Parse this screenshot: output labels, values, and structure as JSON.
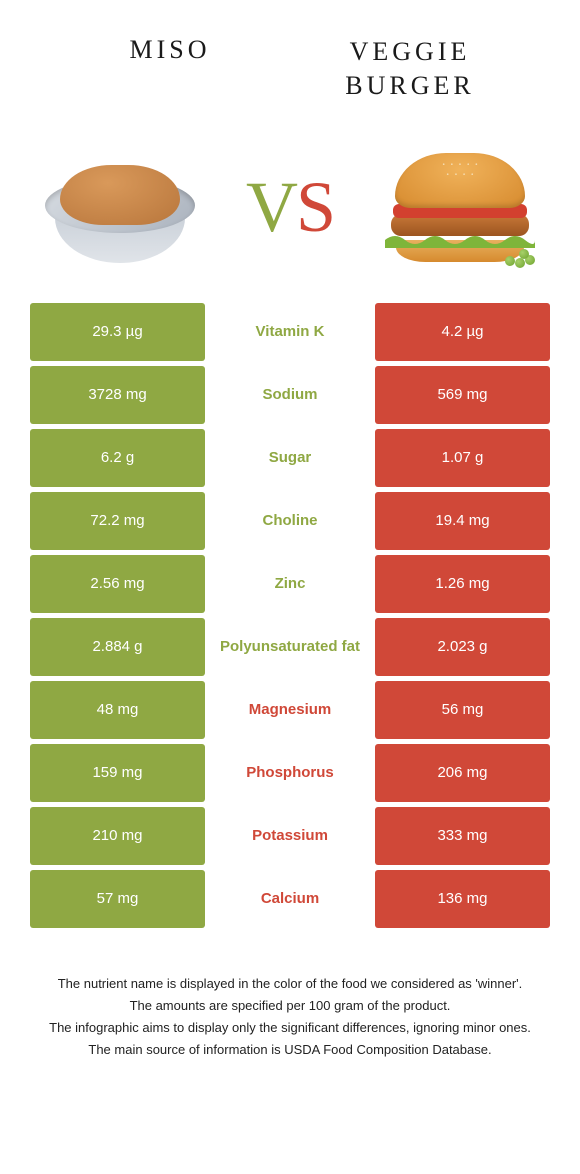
{
  "header": {
    "left_title": "Miso",
    "right_title": "Veggie Burger"
  },
  "vs": {
    "v": "V",
    "s": "S"
  },
  "colors": {
    "left": "#8fa843",
    "right": "#d04838",
    "left_text": "#8fa843",
    "right_text": "#d04838"
  },
  "rows": [
    {
      "left": "29.3 µg",
      "label": "Vitamin K",
      "right": "4.2 µg",
      "winner": "left"
    },
    {
      "left": "3728 mg",
      "label": "Sodium",
      "right": "569 mg",
      "winner": "left"
    },
    {
      "left": "6.2 g",
      "label": "Sugar",
      "right": "1.07 g",
      "winner": "left"
    },
    {
      "left": "72.2 mg",
      "label": "Choline",
      "right": "19.4 mg",
      "winner": "left"
    },
    {
      "left": "2.56 mg",
      "label": "Zinc",
      "right": "1.26 mg",
      "winner": "left"
    },
    {
      "left": "2.884 g",
      "label": "Polyunsaturated fat",
      "right": "2.023 g",
      "winner": "left"
    },
    {
      "left": "48 mg",
      "label": "Magnesium",
      "right": "56 mg",
      "winner": "right"
    },
    {
      "left": "159 mg",
      "label": "Phosphorus",
      "right": "206 mg",
      "winner": "right"
    },
    {
      "left": "210 mg",
      "label": "Potassium",
      "right": "333 mg",
      "winner": "right"
    },
    {
      "left": "57 mg",
      "label": "Calcium",
      "right": "136 mg",
      "winner": "right"
    }
  ],
  "footer": {
    "l1": "The nutrient name is displayed in the color of the food we considered as 'winner'.",
    "l2": "The amounts are specified per 100 gram of the product.",
    "l3": "The infographic aims to display only the significant differences, ignoring minor ones.",
    "l4": "The main source of information is USDA Food Composition Database."
  }
}
